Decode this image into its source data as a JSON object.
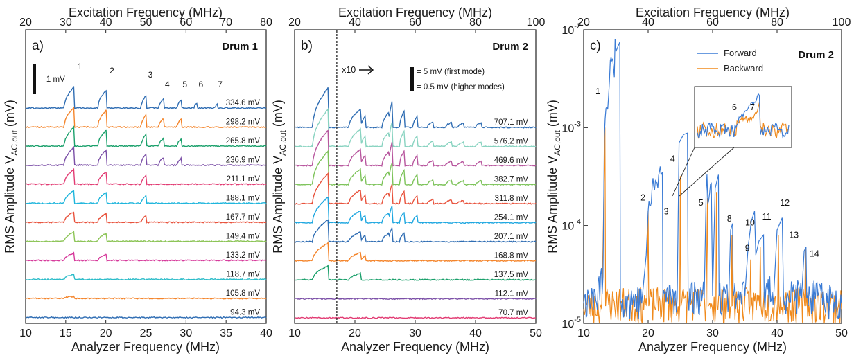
{
  "colors": [
    "#2f6db3",
    "#f4842a",
    "#1aa06b",
    "#7b4fa7",
    "#e23b73",
    "#1eb5dc",
    "#e8523c",
    "#8cc456",
    "#d63a9b",
    "#2bbcc9",
    "#f4842a",
    "#2f6db3",
    "#88d3c0",
    "#b8569e",
    "#7dc35a",
    "#e8523c",
    "#1ea7e0"
  ],
  "chart_data": [
    {
      "type": "line",
      "panel": "a)",
      "title": "Drum 1",
      "xlabel": "Analyzer Frequency (MHz)",
      "x2label": "Excitation Frequency (MHz)",
      "ylabel": "RMS Amplitude V",
      "ylabel_sub": "AC,out",
      "ylabel_unit": " (mV)",
      "xlim": [
        10,
        40
      ],
      "x2lim": [
        20,
        80
      ],
      "xticks": [
        "10",
        "15",
        "20",
        "25",
        "30",
        "35",
        "40"
      ],
      "x2ticks": [
        "20",
        "30",
        "40",
        "50",
        "60",
        "70",
        "80"
      ],
      "scalebar": "= 1 mV",
      "peak_labels": [
        {
          "text": "1",
          "x": 16.3
        },
        {
          "text": "2",
          "x": 20.3
        },
        {
          "text": "3",
          "x": 25.1
        },
        {
          "text": "4",
          "x": 27.2
        },
        {
          "text": "5",
          "x": 29.4
        },
        {
          "text": "6",
          "x": 31.4
        },
        {
          "text": "7",
          "x": 33.8
        }
      ],
      "peaks": [
        {
          "start": 14.8,
          "end": 16.1,
          "h": 1.2
        },
        {
          "start": 19.0,
          "end": 20.1,
          "h": 1.0
        },
        {
          "start": 24.4,
          "end": 25.1,
          "h": 0.75
        },
        {
          "start": 26.6,
          "end": 27.2,
          "h": 0.5
        },
        {
          "start": 28.9,
          "end": 29.4,
          "h": 0.45
        },
        {
          "start": 31.0,
          "end": 31.4,
          "h": 0.3
        },
        {
          "start": 33.6,
          "end": 33.9,
          "h": 0.2
        }
      ],
      "series": [
        {
          "name": "334.6 mV",
          "peaks": 7,
          "scale": 1.0
        },
        {
          "name": "298.2 mV",
          "peaks": 5,
          "scale": 0.95
        },
        {
          "name": "265.8 mV",
          "peaks": 5,
          "scale": 0.9
        },
        {
          "name": "236.9 mV",
          "peaks": 5,
          "scale": 0.85
        },
        {
          "name": "211.1 mV",
          "peaks": 3,
          "scale": 0.7
        },
        {
          "name": "188.1 mV",
          "peaks": 3,
          "scale": 0.6
        },
        {
          "name": "167.7 mV",
          "peaks": 3,
          "scale": 0.5
        },
        {
          "name": "149.4 mV",
          "peaks": 2,
          "scale": 0.45
        },
        {
          "name": "133.2 mV",
          "peaks": 2,
          "scale": 0.35
        },
        {
          "name": "118.7 mV",
          "peaks": 1,
          "scale": 0.25
        },
        {
          "name": "105.8 mV",
          "peaks": 1,
          "scale": 0.1
        },
        {
          "name": "94.3 mV",
          "peaks": 0,
          "scale": 0.0
        }
      ]
    },
    {
      "type": "line",
      "panel": "b)",
      "title": "Drum 2",
      "xlabel": "Analyzer Frequency (MHz)",
      "x2label": "Excitation Frequency (MHz)",
      "ylabel": "RMS Amplitude V",
      "ylabel_sub": "AC,out",
      "ylabel_unit": " (mV)",
      "xlim": [
        10,
        50
      ],
      "x2lim": [
        20,
        100
      ],
      "xticks": [
        "10",
        "20",
        "30",
        "40",
        "50"
      ],
      "x2ticks": [
        "20",
        "40",
        "60",
        "80",
        "100"
      ],
      "divider_x": 17,
      "zoom_label": "x10",
      "scalebar_1": "= 5 mV (first mode)",
      "scalebar_2": "= 0.5 mV (higher modes)",
      "peaks": [
        {
          "start": 13.0,
          "end": 15.6,
          "h": 2.4
        },
        {
          "start": 19.0,
          "end": 21.0,
          "h": 1.1
        },
        {
          "start": 21.0,
          "end": 21.8,
          "h": 0.7
        },
        {
          "start": 24.5,
          "end": 25.6,
          "h": 0.9
        },
        {
          "start": 25.6,
          "end": 26.2,
          "h": 1.6
        },
        {
          "start": 27.4,
          "end": 28.2,
          "h": 1.0
        },
        {
          "start": 29.6,
          "end": 30.4,
          "h": 0.7
        },
        {
          "start": 32.0,
          "end": 33.0,
          "h": 0.35
        },
        {
          "start": 35.0,
          "end": 36.0,
          "h": 0.3
        },
        {
          "start": 37.0,
          "end": 38.0,
          "h": 0.25
        },
        {
          "start": 40.0,
          "end": 41.0,
          "h": 0.3
        }
      ],
      "series": [
        {
          "name": "707.1 mV",
          "peaks": 11,
          "scale": 1.0
        },
        {
          "name": "576.2 mV",
          "peaks": 11,
          "scale": 0.95
        },
        {
          "name": "469.6 mV",
          "peaks": 11,
          "scale": 0.9
        },
        {
          "name": "382.7 mV",
          "peaks": 11,
          "scale": 0.85
        },
        {
          "name": "311.8 mV",
          "peaks": 10,
          "scale": 0.75
        },
        {
          "name": "254.1 mV",
          "peaks": 7,
          "scale": 0.65
        },
        {
          "name": "207.1 mV",
          "peaks": 6,
          "scale": 0.55
        },
        {
          "name": "168.8 mV",
          "peaks": 3,
          "scale": 0.45
        },
        {
          "name": "137.5 mV",
          "peaks": 2,
          "scale": 0.35
        },
        {
          "name": "112.1 mV",
          "peaks": 0,
          "scale": 0.0
        },
        {
          "name": "70.7 mV",
          "peaks": 0,
          "scale": 0.0
        }
      ]
    },
    {
      "type": "line",
      "panel": "c)",
      "title": "Drum 2",
      "xlabel": "Analyzer Frequency (MHz)",
      "x2label": "Excitation Frequency (MHz)",
      "ylabel": "RMS Amplitude V",
      "ylabel_sub": "AC,out",
      "ylabel_unit": " (mV)",
      "xlim": [
        10,
        50
      ],
      "x2lim": [
        20,
        100
      ],
      "ylim": [
        1e-05,
        0.01
      ],
      "yscale": "log",
      "xticks": [
        "10",
        "20",
        "30",
        "40",
        "50"
      ],
      "x2ticks": [
        "20",
        "40",
        "60",
        "80",
        "100"
      ],
      "yticks": [
        {
          "base": "10",
          "exp": "-5",
          "value": 1e-05
        },
        {
          "base": "10",
          "exp": "-4",
          "value": 0.0001
        },
        {
          "base": "10",
          "exp": "-3",
          "value": 0.001
        },
        {
          "base": "10",
          "exp": "-2",
          "value": 0.01
        }
      ],
      "legend_position": "top-right",
      "series": [
        {
          "name": "Forward",
          "color": "#3a7bd5",
          "points": [
            [
              10.0,
              1.6e-05
            ],
            [
              12.0,
              1.6e-05
            ],
            [
              13.0,
              3e-05
            ],
            [
              13.2,
              0.0008
            ],
            [
              14.0,
              0.003
            ],
            [
              15.0,
              0.006
            ],
            [
              15.6,
              0.0075
            ],
            [
              15.7,
              1.7e-05
            ],
            [
              19.0,
              1.6e-05
            ],
            [
              19.7,
              5e-05
            ],
            [
              20.0,
              0.00014
            ],
            [
              21.0,
              0.00023
            ],
            [
              22.0,
              0.00033
            ],
            [
              22.2,
              0.00035
            ],
            [
              22.3,
              1.8e-05
            ],
            [
              24.5,
              1.8e-05
            ],
            [
              24.8,
              0.0007
            ],
            [
              25.5,
              0.00085
            ],
            [
              26.1,
              0.00088
            ],
            [
              26.2,
              1.8e-05
            ],
            [
              28.7,
              1.8e-05
            ],
            [
              29.0,
              0.00022
            ],
            [
              29.8,
              0.00027
            ],
            [
              30.0,
              1.9e-05
            ],
            [
              30.4,
              0.00024
            ],
            [
              30.9,
              0.00033
            ],
            [
              31.0,
              1.9e-05
            ],
            [
              32.5,
              1.8e-05
            ],
            [
              32.8,
              9e-05
            ],
            [
              33.1,
              0.000105
            ],
            [
              33.2,
              1.9e-05
            ],
            [
              35.0,
              1.9e-05
            ],
            [
              35.5,
              6e-05
            ],
            [
              36.0,
              0.00011
            ],
            [
              36.5,
              0.00014
            ],
            [
              36.7,
              5e-05
            ],
            [
              37.2,
              7e-05
            ],
            [
              37.9,
              8e-05
            ],
            [
              38.0,
              1.9e-05
            ],
            [
              39.5,
              2e-05
            ],
            [
              40.0,
              9e-05
            ],
            [
              40.8,
              0.00012
            ],
            [
              41.0,
              1.9e-05
            ],
            [
              43.8,
              1.8e-05
            ],
            [
              44.2,
              5.5e-05
            ],
            [
              44.5,
              6e-05
            ],
            [
              44.6,
              1.8e-05
            ],
            [
              50.0,
              1.6e-05
            ]
          ]
        },
        {
          "name": "Backward",
          "color": "#f08a1c",
          "points": [
            [
              10.0,
              1.4e-05
            ],
            [
              12.8,
              1.4e-05
            ],
            [
              13.0,
              6e-05
            ],
            [
              13.3,
              0.001
            ],
            [
              13.4,
              1.5e-05
            ],
            [
              19.8,
              1.5e-05
            ],
            [
              20.0,
              0.00014
            ],
            [
              20.1,
              1.5e-05
            ],
            [
              24.9,
              1.5e-05
            ],
            [
              25.0,
              0.00032
            ],
            [
              25.1,
              1.5e-05
            ],
            [
              29.0,
              1.5e-05
            ],
            [
              29.2,
              0.00019
            ],
            [
              29.3,
              1.5e-05
            ],
            [
              30.5,
              1.5e-05
            ],
            [
              30.6,
              0.00022
            ],
            [
              30.7,
              1.5e-05
            ],
            [
              32.9,
              1.5e-05
            ],
            [
              33.0,
              8e-05
            ],
            [
              33.1,
              1.5e-05
            ],
            [
              35.8,
              1.5e-05
            ],
            [
              35.9,
              4.5e-05
            ],
            [
              36.0,
              1.5e-05
            ],
            [
              37.3,
              1.5e-05
            ],
            [
              37.4,
              6e-05
            ],
            [
              37.5,
              1.5e-05
            ],
            [
              40.1,
              1.5e-05
            ],
            [
              40.2,
              8e-05
            ],
            [
              40.3,
              1.5e-05
            ],
            [
              44.3,
              1.5e-05
            ],
            [
              44.4,
              6e-05
            ],
            [
              44.5,
              1.5e-05
            ],
            [
              50.0,
              1.4e-05
            ]
          ]
        }
      ],
      "annotations": [
        {
          "text": "1",
          "x": 12.2,
          "y": 0.0022
        },
        {
          "text": "2",
          "x": 19.2,
          "y": 0.00018
        },
        {
          "text": "3",
          "x": 22.8,
          "y": 0.00013
        },
        {
          "text": "4",
          "x": 23.8,
          "y": 0.00045
        },
        {
          "text": "5",
          "x": 28.2,
          "y": 0.00016
        },
        {
          "text": "8",
          "x": 32.6,
          "y": 0.00011
        },
        {
          "text": "9",
          "x": 35.4,
          "y": 5.5e-05
        },
        {
          "text": "10",
          "x": 35.8,
          "y": 0.0001
        },
        {
          "text": "11",
          "x": 38.4,
          "y": 0.000115
        },
        {
          "text": "12",
          "x": 41.2,
          "y": 0.00016
        },
        {
          "text": "13",
          "x": 42.6,
          "y": 7.5e-05
        },
        {
          "text": "14",
          "x": 45.8,
          "y": 4.8e-05
        }
      ],
      "inset_labels": [
        "6",
        "7"
      ]
    }
  ]
}
